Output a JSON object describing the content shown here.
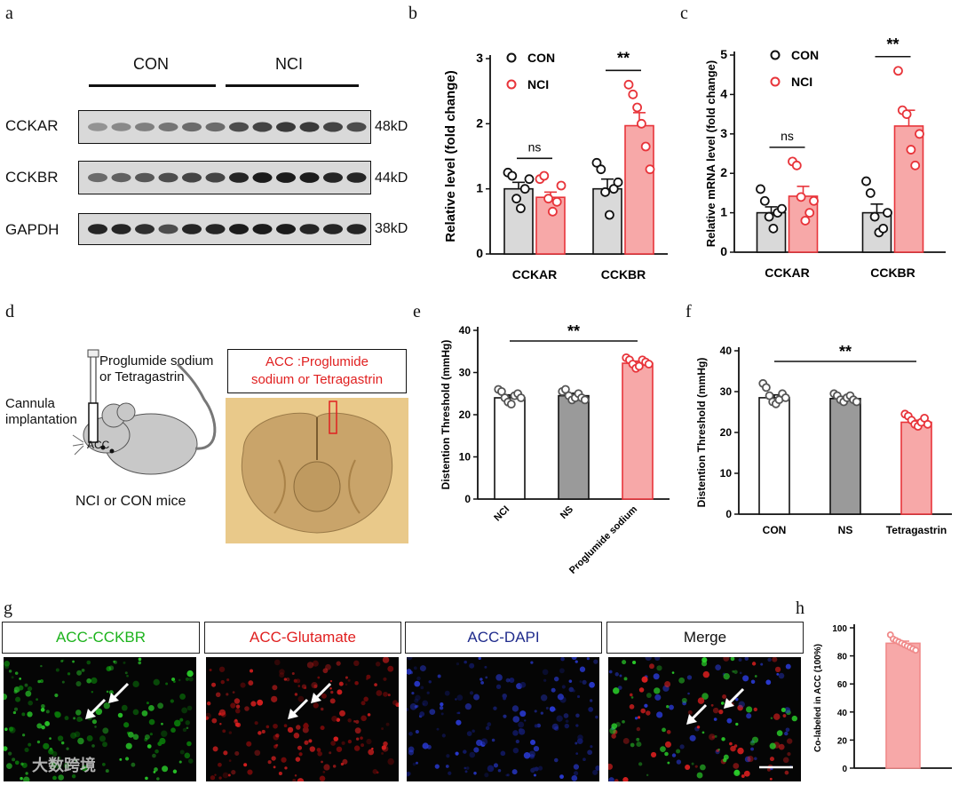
{
  "panel_letters": [
    "a",
    "b",
    "c",
    "d",
    "e",
    "f",
    "g",
    "h"
  ],
  "panel_a": {
    "groups": [
      "CON",
      "NCI"
    ],
    "proteins": [
      {
        "name": "CCKAR",
        "kd": "48kD"
      },
      {
        "name": "CCKBR",
        "kd": "44kD"
      },
      {
        "name": "GAPDH",
        "kd": "38kD"
      }
    ]
  },
  "panel_d": {
    "drug_label_1": "Proglumide sodium",
    "drug_label_2": "or Tetragastrin",
    "cannula_1": "Cannula",
    "cannula_2": "implantation",
    "acc": "ACC",
    "mice_label": "NCI or CON mice",
    "box_line_1": "ACC :Proglumide",
    "box_line_2": "sodium or Tetragastrin"
  },
  "panel_g": {
    "labels": [
      "ACC-CCKBR",
      "ACC-Glutamate",
      "ACC-DAPI",
      "Merge"
    ],
    "label_colors": [
      "#1db31d",
      "#e02020",
      "#1f2b8c",
      "#111111"
    ]
  },
  "watermark": "大数跨境",
  "colors": {
    "con_fill": "#d9d9d9",
    "nci_fill": "#f7a8a8",
    "nci_edge": "#e8343a",
    "ns_fill": "#999999"
  },
  "chart_data": [
    {
      "id": "b",
      "type": "bar",
      "categories": [
        "CCKAR",
        "CCKBR"
      ],
      "ylabel": "Relative  level (fold change)",
      "ylim": [
        0,
        3
      ],
      "yticks": [
        0,
        1,
        2,
        3
      ],
      "legend": [
        "CON",
        "NCI"
      ],
      "series": [
        {
          "name": "CON",
          "values": [
            1.0,
            1.0
          ],
          "sem": [
            0.1,
            0.15
          ],
          "points": [
            [
              1.25,
              1.2,
              0.85,
              0.7,
              1.0,
              1.15
            ],
            [
              1.4,
              1.3,
              0.95,
              0.6,
              1.0,
              1.1
            ]
          ]
        },
        {
          "name": "NCI",
          "values": [
            0.87,
            1.97
          ],
          "sem": [
            0.08,
            0.2
          ],
          "points": [
            [
              1.15,
              1.2,
              0.85,
              0.65,
              0.8,
              1.05
            ],
            [
              2.6,
              2.45,
              2.25,
              2.0,
              1.65,
              1.3
            ]
          ]
        }
      ],
      "annotations": [
        {
          "text": "ns",
          "category": 0
        },
        {
          "text": "**",
          "category": 1
        }
      ]
    },
    {
      "id": "c",
      "type": "bar",
      "categories": [
        "CCKAR",
        "CCKBR"
      ],
      "ylabel": "Relative mRNA level (fold change)",
      "ylim": [
        0,
        5
      ],
      "yticks": [
        0,
        1,
        2,
        3,
        4,
        5
      ],
      "legend": [
        "CON",
        "NCI"
      ],
      "series": [
        {
          "name": "CON",
          "values": [
            1.0,
            1.0
          ],
          "sem": [
            0.15,
            0.22
          ],
          "points": [
            [
              1.6,
              1.3,
              0.9,
              0.6,
              1.0,
              1.1
            ],
            [
              1.8,
              1.5,
              0.9,
              0.5,
              0.6,
              1.0
            ]
          ]
        },
        {
          "name": "NCI",
          "values": [
            1.42,
            3.2
          ],
          "sem": [
            0.25,
            0.4
          ],
          "points": [
            [
              2.3,
              2.2,
              1.4,
              0.8,
              1.0,
              1.3
            ],
            [
              4.6,
              3.6,
              3.5,
              2.6,
              2.2,
              3.0
            ]
          ]
        }
      ],
      "annotations": [
        {
          "text": "ns",
          "category": 0
        },
        {
          "text": "**",
          "category": 1
        }
      ]
    },
    {
      "id": "e",
      "type": "bar",
      "categories": [
        "NCI",
        "NS",
        "Proglumide sodium"
      ],
      "ylabel": "Distention Threshold (mmHg)",
      "ylim": [
        0,
        40
      ],
      "yticks": [
        0,
        10,
        20,
        30,
        40
      ],
      "values": [
        24.0,
        24.5,
        32.2
      ],
      "sem": [
        0.7,
        0.6,
        0.5
      ],
      "points": [
        [
          26,
          25.5,
          24,
          23,
          22.5,
          24.5,
          25,
          24
        ],
        [
          25.5,
          26,
          24.5,
          23.5,
          24,
          25,
          24,
          23.5
        ],
        [
          33.5,
          33,
          32,
          31,
          31.5,
          33,
          32.5,
          32
        ]
      ],
      "annotations": [
        {
          "text": "**"
        }
      ]
    },
    {
      "id": "f",
      "type": "bar",
      "categories": [
        "CON",
        "NS",
        "Tetragastrin"
      ],
      "ylabel": "Distention Threshold (mmHg)",
      "ylim": [
        0,
        40
      ],
      "yticks": [
        0,
        10,
        20,
        30,
        40
      ],
      "values": [
        28.5,
        28.3,
        22.5
      ],
      "sem": [
        0.7,
        0.5,
        0.5
      ],
      "points": [
        [
          32,
          31,
          29,
          27.5,
          27,
          28,
          29.5,
          28.5
        ],
        [
          29.5,
          29,
          28,
          27.5,
          28.5,
          29,
          28,
          27.5
        ],
        [
          24.5,
          24,
          23,
          22,
          21.5,
          22.5,
          23.5,
          22
        ]
      ],
      "annotations": [
        {
          "text": "**"
        }
      ]
    },
    {
      "id": "h",
      "type": "bar",
      "categories": [
        ""
      ],
      "ylabel": "Co-labeled in ACC (100%)",
      "ylim": [
        0,
        100
      ],
      "yticks": [
        0,
        20,
        40,
        60,
        80,
        100
      ],
      "values": [
        89
      ],
      "sem": [
        1.5
      ],
      "points": [
        [
          95,
          92,
          91,
          90,
          89,
          88,
          87,
          86,
          85,
          84
        ]
      ]
    }
  ]
}
